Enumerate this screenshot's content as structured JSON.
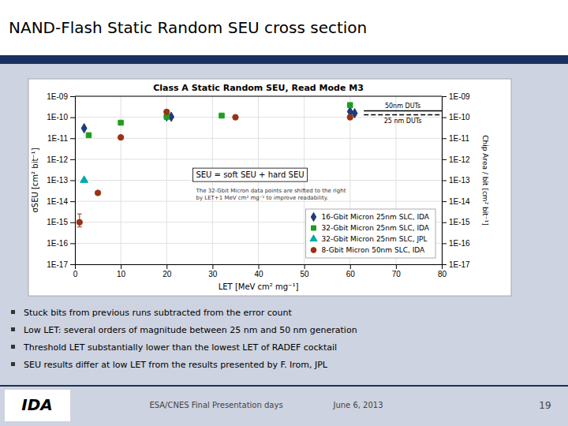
{
  "chart_data": {
    "type": "scatter",
    "title": "NAND-Flash Static Random SEU cross section",
    "subtitle": "Class A Static Random SEU, Read Mode M3",
    "x_label": "LET [MeV cm² mg⁻¹]",
    "y_label": "σSEU [cm² bit⁻¹]",
    "y2_label": "Chip Area / bit [cm² bit⁻¹]",
    "xlim": [
      0,
      80
    ],
    "xticks": [
      0,
      10,
      20,
      30,
      40,
      50,
      60,
      70,
      80
    ],
    "ylim": [
      1e-17,
      1e-09
    ],
    "yticks": [
      {
        "value": 1e-17,
        "label": "1E-17"
      },
      {
        "value": 1e-16,
        "label": "1E-16"
      },
      {
        "value": 1e-15,
        "label": "1E-15"
      },
      {
        "value": 1e-14,
        "label": "1E-14"
      },
      {
        "value": 1e-13,
        "label": "1E-13"
      },
      {
        "value": 1e-12,
        "label": "1E-12"
      },
      {
        "value": 1e-11,
        "label": "1E-11"
      },
      {
        "value": 1e-10,
        "label": "1E-10"
      },
      {
        "value": 1e-09,
        "label": "1E-09"
      }
    ],
    "y2lim": [
      1e-17,
      1e-09
    ],
    "y2ticks": [
      {
        "value": 1e-17,
        "label": "1E-17"
      },
      {
        "value": 1e-16,
        "label": "1E-16"
      },
      {
        "value": 1e-15,
        "label": "1E-15"
      },
      {
        "value": 1e-14,
        "label": "1E-14"
      },
      {
        "value": 1e-13,
        "label": "1E-13"
      },
      {
        "value": 1e-12,
        "label": "1E-12"
      },
      {
        "value": 1e-11,
        "label": "1E-11"
      },
      {
        "value": 1e-10,
        "label": "1E-10"
      },
      {
        "value": 1e-09,
        "label": "1E-09"
      }
    ],
    "log": "y",
    "grid": true,
    "legend": "lower right",
    "series": [
      {
        "name": "16-Gbit Micron 25nm SLC, IDA",
        "type": "scatter",
        "color": "#1e3c78",
        "marker": "diamond",
        "x": [
          2,
          20,
          21,
          60,
          61
        ],
        "values": [
          3e-11,
          1.1e-10,
          1.05e-10,
          1.85e-10,
          1.55e-10
        ]
      },
      {
        "name": "32-Gbit Micron 25nm SLC, IDA",
        "type": "scatter",
        "color": "#1e9e1e",
        "marker": "square",
        "x": [
          3,
          10,
          20,
          32,
          60
        ],
        "values": [
          1.4e-11,
          5.5e-11,
          1.05e-10,
          1.2e-10,
          3.8e-10
        ]
      },
      {
        "name": "32-Gbit Micron 25nm SLC, JPL",
        "type": "scatter",
        "color": "#00aaaa",
        "marker": "triangle",
        "x": [
          2
        ],
        "values": [
          1e-13
        ]
      },
      {
        "name": "8-Gbit Micron 50nm SLC, IDA",
        "type": "scatter",
        "color": "#993311",
        "marker": "circle",
        "x": [
          1,
          5,
          10,
          20,
          35,
          60
        ],
        "values": [
          1e-15,
          2.5e-14,
          1.1e-11,
          1.8e-10,
          1e-10,
          1e-10
        ],
        "yerr_minus": [
          4e-16,
          null,
          null,
          null,
          null,
          null
        ],
        "yerr_plus": [
          1.5e-15,
          null,
          null,
          null,
          null,
          null
        ]
      },
      {
        "name": "50nm DUTs",
        "type": "line",
        "color": "#000000",
        "line_style": "solid",
        "x": [
          63,
          80
        ],
        "values": [
          2e-10,
          2e-10
        ]
      },
      {
        "name": "25 nm DUTs",
        "type": "line",
        "color": "#000000",
        "line_style": "dashed",
        "x": [
          63,
          80
        ],
        "values": [
          1.3e-10,
          1.3e-10
        ]
      }
    ],
    "annotations": [
      "SEU = soft SEU + hard SEU",
      "The 32-Gbit Micron data points are shifted to the right\nby LET+1 MeV cm² mg⁻¹ to improve readability.",
      "Stuck bits from previous runs subtracted from the error count",
      "Low LET: several orders of magnitude between 25 nm and 50 nm generation",
      "Threshold LET substantially lower than the lowest LET of RADEF cocktail",
      "SEU results differ at low LET from the results presented by F. Irom, JPL",
      "IDA",
      "ESA/CNES Final Presentation days",
      "June 6, 2013",
      "19"
    ]
  }
}
